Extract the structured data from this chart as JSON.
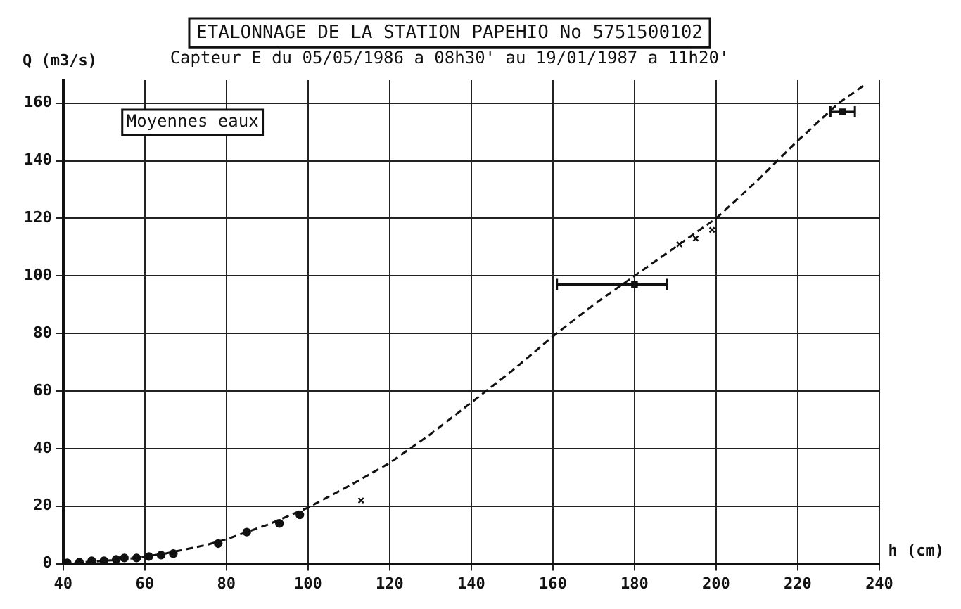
{
  "chart_data": {
    "type": "line",
    "title": "ETALONNAGE DE LA STATION PAPEHIO No 5751500102",
    "subtitle": "Capteur E du 05/05/1986 a 08h30' au 19/01/1987 a 11h20'",
    "xlabel": "h (cm)",
    "ylabel": "Q (m3/s)",
    "annotations": [
      "Moyennes eaux"
    ],
    "xlim": [
      40,
      240
    ],
    "xticks": [
      40,
      60,
      80,
      100,
      120,
      140,
      160,
      180,
      200,
      220,
      240
    ],
    "ylim": [
      0,
      168
    ],
    "yticks": [
      0,
      20,
      40,
      60,
      80,
      100,
      120,
      140,
      160
    ],
    "grid": true,
    "legend": false,
    "series": [
      {
        "color": "#111111",
        "line_style": "dashed",
        "marker": "none",
        "x": [
          40,
          45,
          50,
          55,
          60,
          65,
          70,
          75,
          80,
          85,
          90,
          95,
          100,
          110,
          120,
          130,
          140,
          150,
          160,
          170,
          180,
          190,
          200,
          210,
          220,
          230,
          236
        ],
        "values": [
          0,
          0.5,
          1,
          1.5,
          2.5,
          3.5,
          5,
          6.5,
          8.5,
          11,
          13.5,
          16.5,
          19.5,
          27,
          35,
          45,
          56,
          67,
          79,
          90,
          100,
          110,
          120,
          133,
          147,
          160,
          166
        ]
      },
      {
        "type": "scatter",
        "color": "#111111",
        "marker": "circle",
        "x": [
          41,
          44,
          47,
          50,
          53,
          55,
          58,
          61,
          64,
          67,
          78,
          85,
          93,
          98
        ],
        "values": [
          0.3,
          0.5,
          1,
          1,
          1.5,
          2,
          2,
          2.5,
          3,
          3.5,
          7,
          11,
          14,
          17
        ]
      },
      {
        "type": "scatter",
        "color": "#111111",
        "marker": "cross",
        "x": [
          113,
          191,
          195,
          199
        ],
        "values": [
          22,
          111,
          113,
          116
        ]
      },
      {
        "type": "scatter",
        "color": "#111111",
        "marker": "square",
        "x": [
          180,
          231
        ],
        "values": [
          97,
          157
        ],
        "xerrors": [
          [
            161,
            188
          ],
          [
            228,
            234
          ]
        ]
      }
    ]
  }
}
